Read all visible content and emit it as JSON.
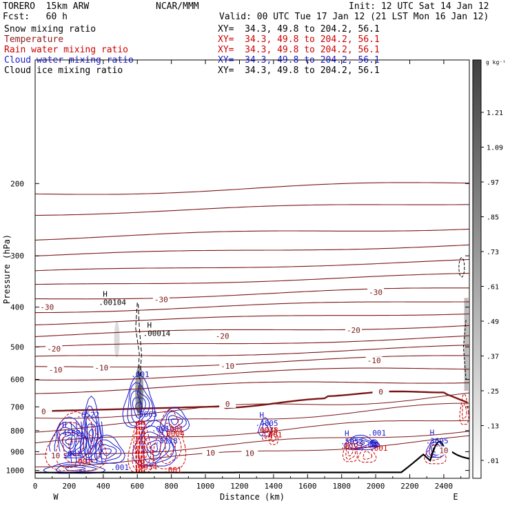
{
  "header": {
    "model": "TORERO  15km ARW",
    "center": "NCAR/MMM",
    "init": "Init: 12 UTC Sat 14 Jan 12",
    "fcst": "Fcst:   60 h",
    "valid": "Valid: 00 UTC Tue 17 Jan 12 (21 LST Mon 16 Jan 12)"
  },
  "fields": [
    {
      "name": "Snow mixing ratio",
      "xy": "XY=  34.3, 49.8 to 204.2, 56.1",
      "color": "#000000",
      "xy_color": "#000000"
    },
    {
      "name": "Temperature",
      "xy": "XY=  34.3, 49.8 to 204.2, 56.1",
      "color": "#8b1a1a",
      "xy_color": "#cc0000"
    },
    {
      "name": "Rain water mixing ratio",
      "xy": "XY=  34.3, 49.8 to 204.2, 56.1",
      "color": "#cc0000",
      "xy_color": "#cc0000"
    },
    {
      "name": "Cloud water mixing ratio",
      "xy": "XY=  34.3, 49.8 to 204.2, 56.1",
      "color": "#1a1acc",
      "xy_color": "#1a1acc"
    },
    {
      "name": "Cloud ice mixing ratio",
      "xy": "XY=  34.3, 49.8 to 204.2, 56.1",
      "color": "#000000",
      "xy_color": "#000000"
    }
  ],
  "chart_data": {
    "type": "contour",
    "xlabel": "Distance (km)",
    "ylabel": "Pressure (hPa)",
    "xlim": [
      0,
      2550
    ],
    "ylim": [
      1045,
      100
    ],
    "xticks": [
      0,
      200,
      400,
      600,
      800,
      1000,
      1200,
      1400,
      1600,
      1800,
      2000,
      2200,
      2400
    ],
    "yticks": [
      200,
      300,
      400,
      500,
      600,
      700,
      800,
      900,
      1000
    ],
    "x_end_labels": {
      "left": "W",
      "right": "E"
    },
    "colorbar": {
      "unit": "g kg⁻¹",
      "ticks": [
        "1.21",
        "1.09",
        ".97",
        ".85",
        ".73",
        ".61",
        ".49",
        ".37",
        ".25",
        ".13",
        ".01"
      ],
      "values": [
        1.21,
        1.09,
        0.97,
        0.85,
        0.73,
        0.61,
        0.49,
        0.37,
        0.25,
        0.13,
        0.01
      ]
    },
    "temperature_contour_labels": [
      {
        "x": 70,
        "p": 400,
        "label": "-30"
      },
      {
        "x": 740,
        "p": 383,
        "label": "-30"
      },
      {
        "x": 2000,
        "p": 368,
        "label": "-30"
      },
      {
        "x": 110,
        "p": 505,
        "label": "-20"
      },
      {
        "x": 1100,
        "p": 470,
        "label": "-20"
      },
      {
        "x": 1870,
        "p": 455,
        "label": "-20"
      },
      {
        "x": 120,
        "p": 568,
        "label": "-10"
      },
      {
        "x": 390,
        "p": 562,
        "label": "-10"
      },
      {
        "x": 1130,
        "p": 557,
        "label": "-10"
      },
      {
        "x": 1990,
        "p": 540,
        "label": "-10"
      },
      {
        "x": 50,
        "p": 718,
        "label": "0"
      },
      {
        "x": 1130,
        "p": 688,
        "label": "0"
      },
      {
        "x": 2030,
        "p": 643,
        "label": "0"
      },
      {
        "x": 120,
        "p": 920,
        "label": "10"
      },
      {
        "x": 1030,
        "p": 905,
        "label": "10"
      },
      {
        "x": 1260,
        "p": 907,
        "label": "10"
      },
      {
        "x": 2400,
        "p": 894,
        "label": "10"
      }
    ],
    "max_labels": [
      {
        "x": 430,
        "p": 395,
        "text": ".00104",
        "h": "H",
        "color": "#000000"
      },
      {
        "x": 690,
        "p": 470,
        "text": ".00014",
        "h": "H",
        "color": "#000000"
      },
      {
        "x": 620,
        "p": 592,
        "text": ".001",
        "h": "",
        "color": "#1a1acc"
      },
      {
        "x": 300,
        "p": 742,
        "text": ".6522",
        "h": "",
        "color": "#1a1acc"
      },
      {
        "x": 640,
        "p": 741,
        "text": ".5665",
        "h": "",
        "color": "#1a1acc"
      },
      {
        "x": 190,
        "p": 823,
        "text": ".4552",
        "h": "H",
        "color": "#1a1acc"
      },
      {
        "x": 740,
        "p": 803,
        "text": ".001",
        "h": "",
        "color": "#1a1acc"
      },
      {
        "x": 820,
        "p": 803,
        "text": ".001",
        "h": "",
        "color": "#cc0000"
      },
      {
        "x": 1350,
        "p": 779,
        "text": ".4805",
        "h": "H",
        "color": "#1a1acc"
      },
      {
        "x": 1350,
        "p": 809,
        "text": ".0038",
        "h": "",
        "color": "#cc0000"
      },
      {
        "x": 800,
        "p": 826,
        "text": ".0004",
        "h": "",
        "color": "#cc0000"
      },
      {
        "x": 760,
        "p": 859,
        "text": ".5178",
        "h": "H",
        "color": "#1a1acc"
      },
      {
        "x": 1400,
        "p": 831,
        "text": ".001",
        "h": "",
        "color": "#cc0000"
      },
      {
        "x": 1850,
        "p": 863,
        "text": ".5952",
        "h": "H",
        "color": "#1a1acc"
      },
      {
        "x": 1850,
        "p": 885,
        "text": ".0127",
        "h": "",
        "color": "#cc0000"
      },
      {
        "x": 2010,
        "p": 822,
        "text": ".001",
        "h": "",
        "color": "#1a1acc"
      },
      {
        "x": 2020,
        "p": 896,
        "text": ".001",
        "h": "",
        "color": "#cc0000"
      },
      {
        "x": 2350,
        "p": 860,
        "text": ".3695",
        "h": "H",
        "color": "#1a1acc"
      },
      {
        "x": 220,
        "p": 924,
        "text": ".001",
        "h": "",
        "color": "#1a1acc"
      },
      {
        "x": 280,
        "p": 965,
        "text": ".001",
        "h": "",
        "color": "#cc0000"
      },
      {
        "x": 500,
        "p": 997,
        "text": ".001",
        "h": "",
        "color": "#1a1acc"
      },
      {
        "x": 640,
        "p": 995,
        "text": ".5934",
        "h": "",
        "color": "#cc0000"
      },
      {
        "x": 810,
        "p": 1011,
        "text": ".001",
        "h": "",
        "color": "#cc0000"
      }
    ]
  }
}
